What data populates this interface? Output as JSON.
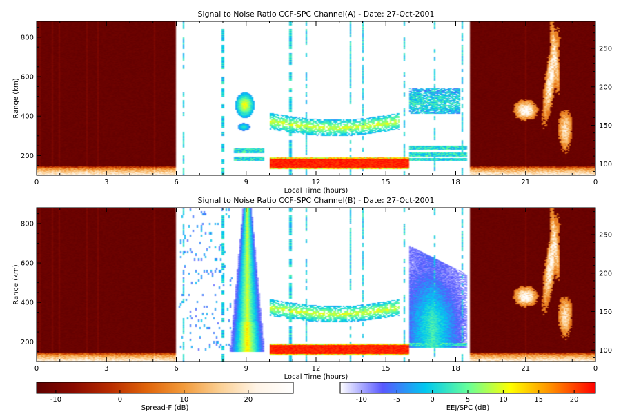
{
  "chart_data": [
    {
      "type": "heatmap",
      "title": "Signal to Noise Ratio CCF-SPC Channel(A) - Date: 27-Oct-2001",
      "xlabel": "Local Time (hours)",
      "ylabel": "Range (km)",
      "xlim": [
        0,
        24
      ],
      "ylim": [
        100,
        880
      ],
      "y2lim": [
        85,
        285
      ],
      "xticks": [
        "0",
        "3",
        "6",
        "9",
        "12",
        "15",
        "18",
        "21",
        "0"
      ],
      "xtick_values": [
        0,
        3,
        6,
        9,
        12,
        15,
        18,
        21,
        24
      ],
      "yticks": [
        "200",
        "400",
        "600",
        "800"
      ],
      "ytick_values": [
        200,
        400,
        600,
        800
      ],
      "y2ticks": [
        "100",
        "150",
        "200",
        "250"
      ],
      "y2tick_values": [
        100,
        150,
        200,
        250
      ],
      "segments": [
        {
          "x": [
            0,
            6
          ],
          "colormap": "spread-f",
          "mode": "night"
        },
        {
          "x": [
            6,
            18.6
          ],
          "colormap": "eej-spc",
          "mode": "day"
        },
        {
          "x": [
            18.6,
            24
          ],
          "colormap": "spread-f",
          "mode": "night"
        }
      ],
      "features": [
        {
          "x": [
            10,
            16
          ],
          "y": [
            132,
            190
          ],
          "value_db": 22
        },
        {
          "x": [
            10,
            15.5
          ],
          "y": [
            320,
            410
          ],
          "value_db": 0
        },
        {
          "x": [
            8.3,
            9.4
          ],
          "y": [
            420,
            520
          ],
          "value_db": 2
        },
        {
          "x": [
            16.1,
            18.0
          ],
          "y": [
            410,
            540
          ],
          "value_db": 0
        },
        {
          "x": [
            20.3,
            22.6
          ],
          "y": [
            380,
            860
          ],
          "value_db": 20
        }
      ]
    },
    {
      "type": "heatmap",
      "title": "Signal to Noise Ratio CCF-SPC Channel(B) - Date: 27-Oct-2001",
      "xlabel": "Local Time (hours)",
      "ylabel": "Range (km)",
      "xlim": [
        0,
        24
      ],
      "ylim": [
        100,
        880
      ],
      "y2lim": [
        85,
        285
      ],
      "xticks": [
        "0",
        "3",
        "6",
        "9",
        "12",
        "15",
        "18",
        "21",
        "0"
      ],
      "xtick_values": [
        0,
        3,
        6,
        9,
        12,
        15,
        18,
        21,
        24
      ],
      "yticks": [
        "200",
        "400",
        "600",
        "800"
      ],
      "ytick_values": [
        200,
        400,
        600,
        800
      ],
      "y2ticks": [
        "100",
        "150",
        "200",
        "250"
      ],
      "y2tick_values": [
        100,
        150,
        200,
        250
      ],
      "segments": [
        {
          "x": [
            0,
            6
          ],
          "colormap": "spread-f",
          "mode": "night"
        },
        {
          "x": [
            6,
            18.6
          ],
          "colormap": "eej-spc",
          "mode": "day"
        },
        {
          "x": [
            18.6,
            24
          ],
          "colormap": "spread-f",
          "mode": "night"
        }
      ],
      "features": [
        {
          "x": [
            10,
            16
          ],
          "y": [
            132,
            190
          ],
          "value_db": 22
        },
        {
          "x": [
            10,
            15.5
          ],
          "y": [
            320,
            410
          ],
          "value_db": 0
        },
        {
          "x": [
            8.4,
            9.6
          ],
          "y": [
            150,
            880
          ],
          "value_db": 3
        },
        {
          "x": [
            16.0,
            18.4
          ],
          "y": [
            170,
            680
          ],
          "value_db": 0
        },
        {
          "x": [
            20.3,
            22.6
          ],
          "y": [
            380,
            860
          ],
          "value_db": 20
        }
      ]
    }
  ],
  "colorbars": [
    {
      "label": "Spread-F (dB)",
      "range": [
        -13,
        27
      ],
      "ticks": [
        "-10",
        "0",
        "10",
        "20"
      ],
      "tick_values": [
        -10,
        0,
        10,
        20
      ],
      "colors": [
        "#600000",
        "#8a0a00",
        "#b82c00",
        "#e0640a",
        "#f29a3a",
        "#fbcf93",
        "#fff4e6",
        "#ffffff"
      ]
    },
    {
      "label": "EEJ/SPC (dB)",
      "range": [
        -13,
        23
      ],
      "ticks": [
        "-10",
        "-5",
        "0",
        "5",
        "10",
        "15",
        "20"
      ],
      "tick_values": [
        -10,
        -5,
        0,
        5,
        10,
        15,
        20
      ],
      "colors": [
        "#ffffff",
        "#5858ff",
        "#00c8f0",
        "#66ff9a",
        "#ffff00",
        "#ff8800",
        "#ff0000"
      ]
    }
  ]
}
